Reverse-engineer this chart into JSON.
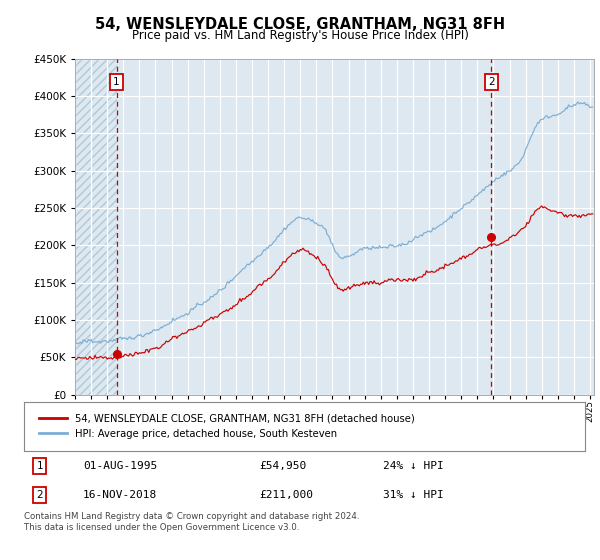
{
  "title": "54, WENSLEYDALE CLOSE, GRANTHAM, NG31 8FH",
  "subtitle": "Price paid vs. HM Land Registry's House Price Index (HPI)",
  "ylim": [
    0,
    450000
  ],
  "hpi_color": "#7eaed4",
  "price_color": "#cc0000",
  "vline_color": "#cc0000",
  "bg_color": "#dde8f0",
  "hatch_color": "#b0c8d8",
  "grid_color": "#ffffff",
  "legend_label_price": "54, WENSLEYDALE CLOSE, GRANTHAM, NG31 8FH (detached house)",
  "legend_label_hpi": "HPI: Average price, detached house, South Kesteven",
  "annotation1_date": "01-AUG-1995",
  "annotation1_price": "£54,950",
  "annotation1_hpi": "24% ↓ HPI",
  "annotation2_date": "16-NOV-2018",
  "annotation2_price": "£211,000",
  "annotation2_hpi": "31% ↓ HPI",
  "footnote": "Contains HM Land Registry data © Crown copyright and database right 2024.\nThis data is licensed under the Open Government Licence v3.0.",
  "sale1_year": 1995.583,
  "sale1_value": 54950,
  "sale2_year": 2018.875,
  "sale2_value": 211000,
  "xlim_start": 1993.0,
  "xlim_end": 2025.25
}
